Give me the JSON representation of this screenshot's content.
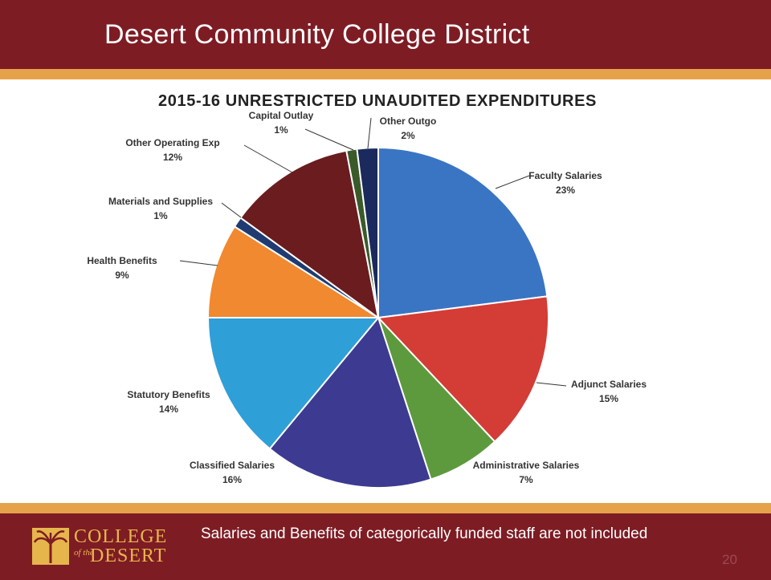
{
  "header": {
    "title": "Desert Community College District"
  },
  "chart_data": {
    "type": "pie",
    "title": "2015-16 UNRESTRICTED UNAUDITED EXPENDITURES",
    "slices": [
      {
        "label": "Faculty Salaries",
        "pct_label": "23%",
        "value": 23,
        "color": "#3a75c4"
      },
      {
        "label": "Adjunct Salaries",
        "pct_label": "15%",
        "value": 15,
        "color": "#d43c36"
      },
      {
        "label": "Administrative Salaries",
        "pct_label": "7%",
        "value": 7,
        "color": "#5d9a3e"
      },
      {
        "label": "Classified Salaries",
        "pct_label": "16%",
        "value": 16,
        "color": "#3d3a92"
      },
      {
        "label": "Statutory Benefits",
        "pct_label": "14%",
        "value": 14,
        "color": "#2f9fd8"
      },
      {
        "label": "Health Benefits",
        "pct_label": "9%",
        "value": 9,
        "color": "#f0892f"
      },
      {
        "label": "Materials and Supplies",
        "pct_label": "1%",
        "value": 1,
        "color": "#1f3b72"
      },
      {
        "label": "Other Operating Exp",
        "pct_label": "12%",
        "value": 12,
        "color": "#6a1c1e"
      },
      {
        "label": "Capital Outlay",
        "pct_label": "1%",
        "value": 1,
        "color": "#3a5a2a"
      },
      {
        "label": "Other Outgo",
        "pct_label": "2%",
        "value": 2,
        "color": "#1b2a5c"
      }
    ]
  },
  "footer": {
    "note": "Salaries and Benefits of categorically funded staff are not included",
    "page_number": "20",
    "logo": {
      "line1": "COLLEGE",
      "small": "of the",
      "line2": "DESERT"
    }
  }
}
